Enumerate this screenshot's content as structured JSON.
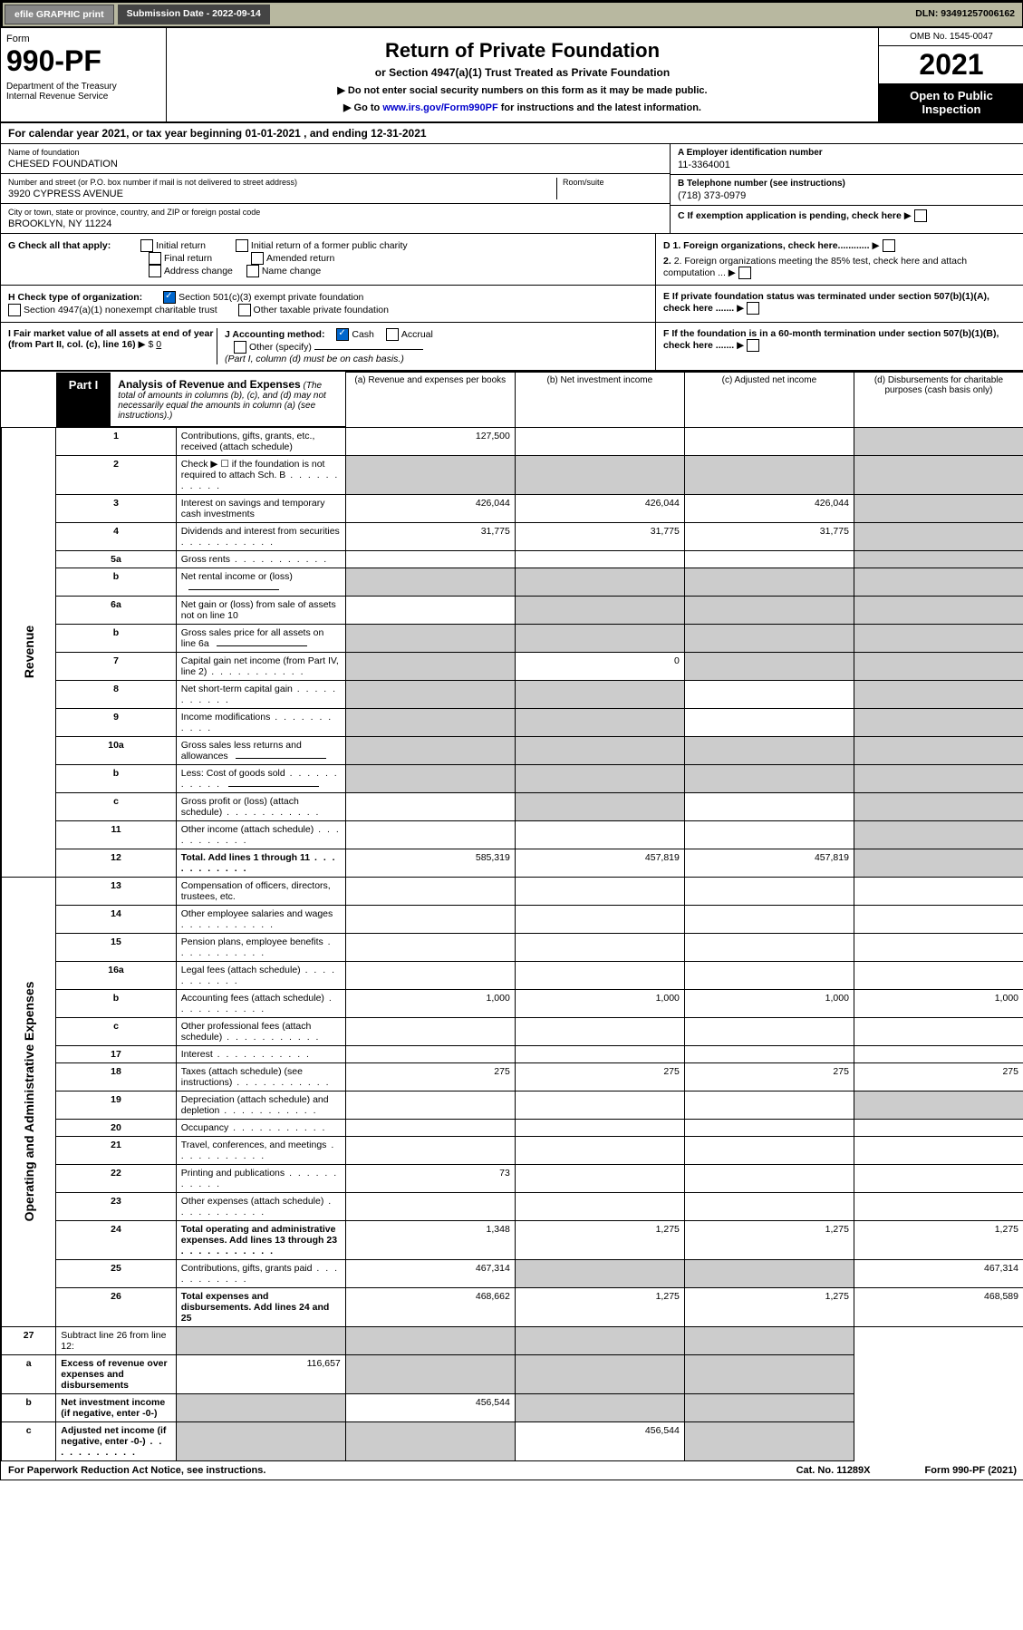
{
  "top": {
    "efile": "efile GRAPHIC print",
    "submission": "Submission Date - 2022-09-14",
    "dln": "DLN: 93491257006162"
  },
  "header": {
    "form_label": "Form",
    "form_num": "990-PF",
    "dept": "Department of the Treasury\nInternal Revenue Service",
    "title": "Return of Private Foundation",
    "subtitle": "or Section 4947(a)(1) Trust Treated as Private Foundation",
    "note1": "▶ Do not enter social security numbers on this form as it may be made public.",
    "note2_pre": "▶ Go to ",
    "note2_link": "www.irs.gov/Form990PF",
    "note2_post": " for instructions and the latest information.",
    "omb": "OMB No. 1545-0047",
    "year": "2021",
    "open": "Open to Public Inspection"
  },
  "cal": "For calendar year 2021, or tax year beginning 01-01-2021             , and ending 12-31-2021",
  "ident": {
    "name_lab": "Name of foundation",
    "name": "CHESED FOUNDATION",
    "addr_lab": "Number and street (or P.O. box number if mail is not delivered to street address)",
    "addr": "3920 CYPRESS AVENUE",
    "room_lab": "Room/suite",
    "city_lab": "City or town, state or province, country, and ZIP or foreign postal code",
    "city": "BROOKLYN, NY  11224",
    "a_lab": "A Employer identification number",
    "a_val": "11-3364001",
    "b_lab": "B Telephone number (see instructions)",
    "b_val": "(718) 373-0979",
    "c_lab": "C If exemption application is pending, check here",
    "d1": "D 1. Foreign organizations, check here............",
    "d2": "2. Foreign organizations meeting the 85% test, check here and attach computation ...",
    "e": "E  If private foundation status was terminated under section 507(b)(1)(A), check here .......",
    "f": "F  If the foundation is in a 60-month termination under section 507(b)(1)(B), check here ......."
  },
  "g": {
    "label": "G Check all that apply:",
    "opts": [
      "Initial return",
      "Final return",
      "Address change",
      "Initial return of a former public charity",
      "Amended return",
      "Name change"
    ]
  },
  "h": {
    "label": "H Check type of organization:",
    "o1": "Section 501(c)(3) exempt private foundation",
    "o2": "Section 4947(a)(1) nonexempt charitable trust",
    "o3": "Other taxable private foundation"
  },
  "i": {
    "label": "I Fair market value of all assets at end of year (from Part II, col. (c), line 16)",
    "val": "0"
  },
  "j": {
    "label": "J Accounting method:",
    "cash": "Cash",
    "accrual": "Accrual",
    "other": "Other (specify)",
    "note": "(Part I, column (d) must be on cash basis.)"
  },
  "part1": {
    "tag": "Part I",
    "title": "Analysis of Revenue and Expenses",
    "note": "(The total of amounts in columns (b), (c), and (d) may not necessarily equal the amounts in column (a) (see instructions).)",
    "cols": {
      "a": "(a)  Revenue and expenses per books",
      "b": "(b)  Net investment income",
      "c": "(c)  Adjusted net income",
      "d": "(d)  Disbursements for charitable purposes (cash basis only)"
    }
  },
  "sec_revenue": "Revenue",
  "sec_expenses": "Operating and Administrative Expenses",
  "rows": [
    {
      "n": "1",
      "lab": "Contributions, gifts, grants, etc., received (attach schedule)",
      "a": "127,500",
      "d_shade": true
    },
    {
      "n": "2",
      "lab": "Check ▶ ☐ if the foundation is not required to attach Sch. B",
      "dots": true,
      "a_shade": true,
      "b_shade": true,
      "c_shade": true,
      "d_shade": true
    },
    {
      "n": "3",
      "lab": "Interest on savings and temporary cash investments",
      "a": "426,044",
      "b": "426,044",
      "c": "426,044",
      "d_shade": true
    },
    {
      "n": "4",
      "lab": "Dividends and interest from securities",
      "dots": true,
      "a": "31,775",
      "b": "31,775",
      "c": "31,775",
      "d_shade": true
    },
    {
      "n": "5a",
      "lab": "Gross rents",
      "dots": true,
      "d_shade": true
    },
    {
      "n": "b",
      "lab": "Net rental income or (loss)",
      "inline": true,
      "a_shade": true,
      "b_shade": true,
      "c_shade": true,
      "d_shade": true
    },
    {
      "n": "6a",
      "lab": "Net gain or (loss) from sale of assets not on line 10",
      "b_shade": true,
      "c_shade": true,
      "d_shade": true
    },
    {
      "n": "b",
      "lab": "Gross sales price for all assets on line 6a",
      "inline": true,
      "a_shade": true,
      "b_shade": true,
      "c_shade": true,
      "d_shade": true
    },
    {
      "n": "7",
      "lab": "Capital gain net income (from Part IV, line 2)",
      "dots": true,
      "a_shade": true,
      "b": "0",
      "c_shade": true,
      "d_shade": true
    },
    {
      "n": "8",
      "lab": "Net short-term capital gain",
      "dots": true,
      "a_shade": true,
      "b_shade": true,
      "d_shade": true
    },
    {
      "n": "9",
      "lab": "Income modifications",
      "dots": true,
      "a_shade": true,
      "b_shade": true,
      "d_shade": true
    },
    {
      "n": "10a",
      "lab": "Gross sales less returns and allowances",
      "inline": true,
      "a_shade": true,
      "b_shade": true,
      "c_shade": true,
      "d_shade": true
    },
    {
      "n": "b",
      "lab": "Less: Cost of goods sold",
      "dots": true,
      "inline": true,
      "a_shade": true,
      "b_shade": true,
      "c_shade": true,
      "d_shade": true
    },
    {
      "n": "c",
      "lab": "Gross profit or (loss) (attach schedule)",
      "dots": true,
      "b_shade": true,
      "d_shade": true
    },
    {
      "n": "11",
      "lab": "Other income (attach schedule)",
      "dots": true,
      "d_shade": true
    },
    {
      "n": "12",
      "lab": "Total. Add lines 1 through 11",
      "dots": true,
      "bold": true,
      "a": "585,319",
      "b": "457,819",
      "c": "457,819",
      "d_shade": true
    }
  ],
  "exp_rows": [
    {
      "n": "13",
      "lab": "Compensation of officers, directors, trustees, etc."
    },
    {
      "n": "14",
      "lab": "Other employee salaries and wages",
      "dots": true
    },
    {
      "n": "15",
      "lab": "Pension plans, employee benefits",
      "dots": true
    },
    {
      "n": "16a",
      "lab": "Legal fees (attach schedule)",
      "dots": true
    },
    {
      "n": "b",
      "lab": "Accounting fees (attach schedule)",
      "dots": true,
      "a": "1,000",
      "b": "1,000",
      "c": "1,000",
      "d": "1,000"
    },
    {
      "n": "c",
      "lab": "Other professional fees (attach schedule)",
      "dots": true
    },
    {
      "n": "17",
      "lab": "Interest",
      "dots": true
    },
    {
      "n": "18",
      "lab": "Taxes (attach schedule) (see instructions)",
      "dots": true,
      "a": "275",
      "b": "275",
      "c": "275",
      "d": "275"
    },
    {
      "n": "19",
      "lab": "Depreciation (attach schedule) and depletion",
      "dots": true,
      "d_shade": true
    },
    {
      "n": "20",
      "lab": "Occupancy",
      "dots": true
    },
    {
      "n": "21",
      "lab": "Travel, conferences, and meetings",
      "dots": true
    },
    {
      "n": "22",
      "lab": "Printing and publications",
      "dots": true,
      "a": "73"
    },
    {
      "n": "23",
      "lab": "Other expenses (attach schedule)",
      "dots": true
    },
    {
      "n": "24",
      "lab": "Total operating and administrative expenses. Add lines 13 through 23",
      "dots": true,
      "bold": true,
      "a": "1,348",
      "b": "1,275",
      "c": "1,275",
      "d": "1,275"
    },
    {
      "n": "25",
      "lab": "Contributions, gifts, grants paid",
      "dots": true,
      "a": "467,314",
      "b_shade": true,
      "c_shade": true,
      "d": "467,314"
    },
    {
      "n": "26",
      "lab": "Total expenses and disbursements. Add lines 24 and 25",
      "bold": true,
      "a": "468,662",
      "b": "1,275",
      "c": "1,275",
      "d": "468,589"
    }
  ],
  "net_rows": [
    {
      "n": "27",
      "lab": "Subtract line 26 from line 12:",
      "a_shade": true,
      "b_shade": true,
      "c_shade": true,
      "d_shade": true
    },
    {
      "n": "a",
      "lab": "Excess of revenue over expenses and disbursements",
      "bold": true,
      "a": "116,657",
      "b_shade": true,
      "c_shade": true,
      "d_shade": true
    },
    {
      "n": "b",
      "lab": "Net investment income (if negative, enter -0-)",
      "bold": true,
      "a_shade": true,
      "b": "456,544",
      "c_shade": true,
      "d_shade": true
    },
    {
      "n": "c",
      "lab": "Adjusted net income (if negative, enter -0-)",
      "dots": true,
      "bold": true,
      "a_shade": true,
      "b_shade": true,
      "c": "456,544",
      "d_shade": true
    }
  ],
  "footer": {
    "l": "For Paperwork Reduction Act Notice, see instructions.",
    "c": "Cat. No. 11289X",
    "r": "Form 990-PF (2021)"
  }
}
